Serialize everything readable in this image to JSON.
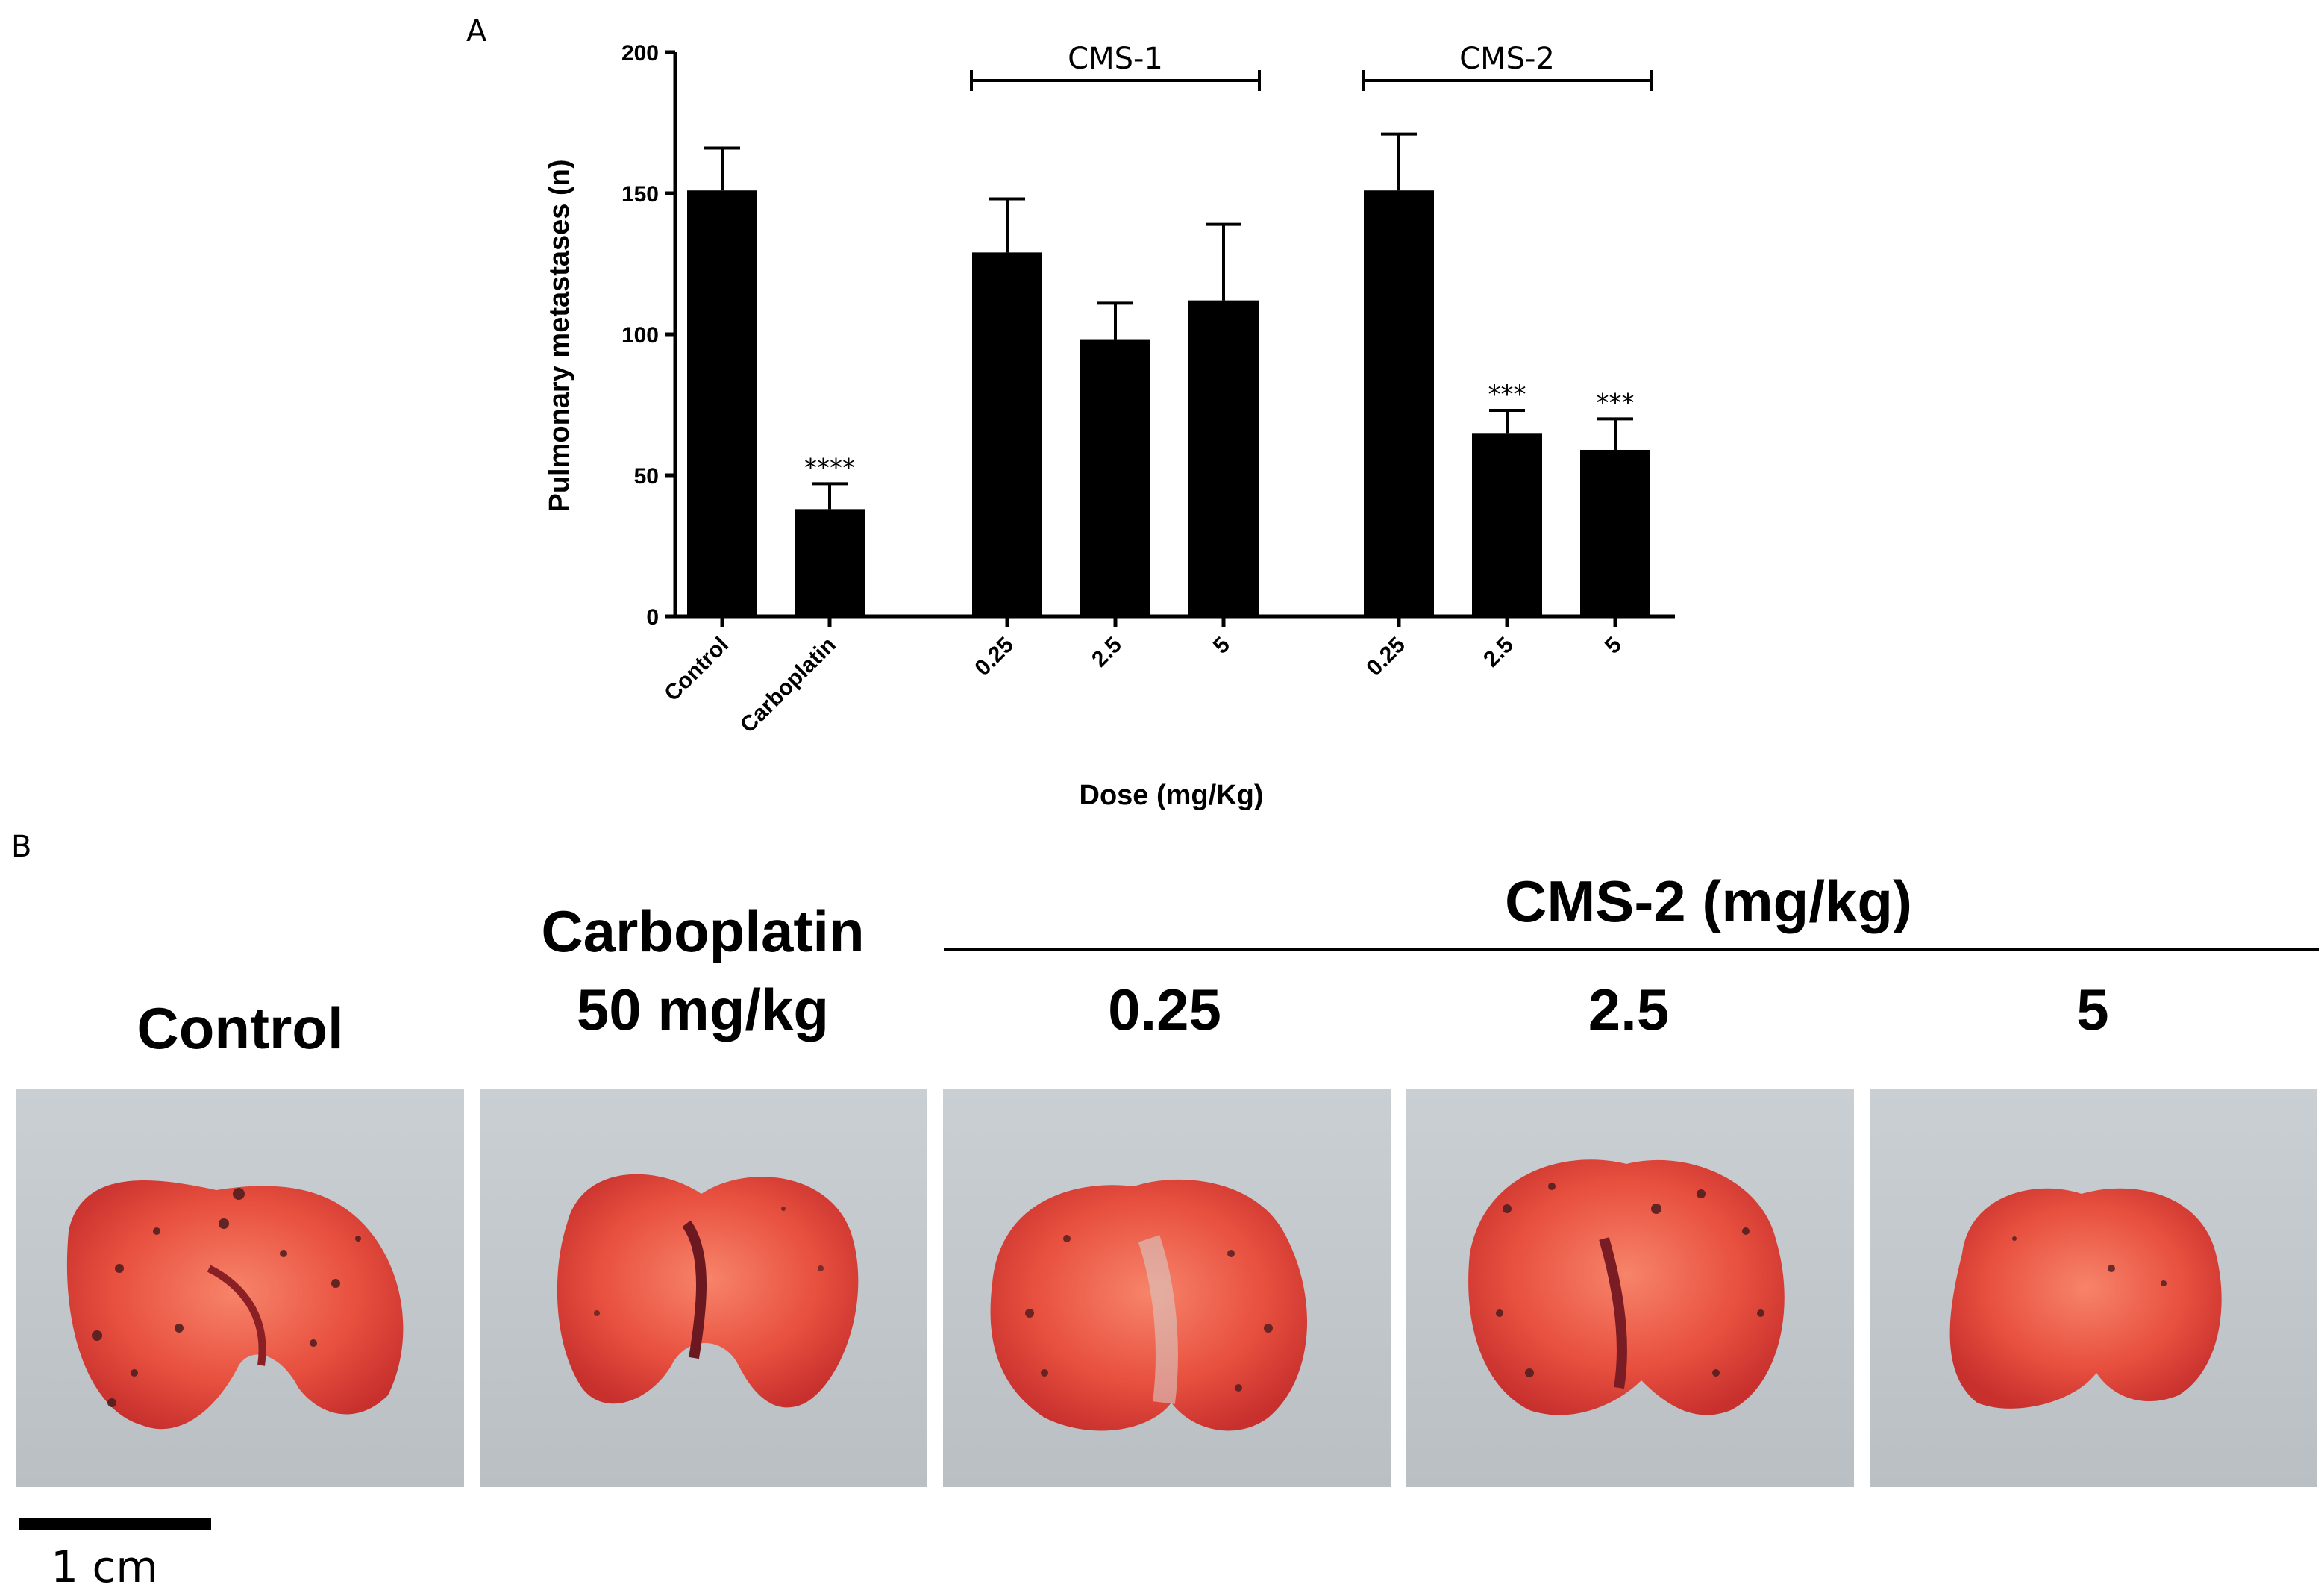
{
  "panel_a_label": "A",
  "panel_b_label": "B",
  "chart_data": {
    "type": "bar",
    "title": "",
    "xlabel": "Dose (mg/Kg)",
    "ylabel": "Pulmonary metastases (n)",
    "ylim": [
      0,
      200
    ],
    "yticks": [
      "0",
      "50",
      "100",
      "150",
      "200"
    ],
    "categories": [
      "Control",
      "Carboplatin",
      "0.25",
      "2.5",
      "5",
      "0.25",
      "2.5",
      "5"
    ],
    "values": [
      151,
      38,
      129,
      98,
      112,
      151,
      65,
      59
    ],
    "errors": [
      15,
      9,
      19,
      13,
      27,
      20,
      8,
      11
    ],
    "significance": [
      "",
      "****",
      "",
      "",
      "",
      "",
      "***",
      "***"
    ],
    "groups": [
      {
        "label": "CMS-1",
        "members": [
          2,
          3,
          4
        ]
      },
      {
        "label": "CMS-2",
        "members": [
          5,
          6,
          7
        ]
      }
    ]
  },
  "panel_b": {
    "group_header": "CMS-2 (mg/kg)",
    "columns": [
      {
        "title_line1": "Control",
        "title_line2": ""
      },
      {
        "title_line1": "Carboplatin",
        "title_line2": "50 mg/kg"
      },
      {
        "title_line1": "0.25",
        "title_line2": ""
      },
      {
        "title_line1": "2.5",
        "title_line2": ""
      },
      {
        "title_line1": "5",
        "title_line2": ""
      }
    ],
    "photo_subject": "excised lung with metastatic foci",
    "scale_bar_label": "1 cm"
  },
  "colors": {
    "bar": "#000000",
    "photo_background": "#c5cbcf",
    "lung_tissue": "#e8503f",
    "metastasis": "#4a1c1e"
  }
}
